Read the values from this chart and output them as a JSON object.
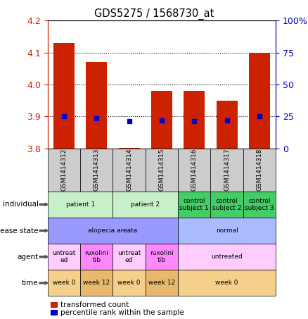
{
  "title": "GDS5275 / 1568730_at",
  "samples": [
    "GSM1414312",
    "GSM1414313",
    "GSM1414314",
    "GSM1414315",
    "GSM1414316",
    "GSM1414317",
    "GSM1414318"
  ],
  "red_values": [
    4.13,
    4.07,
    3.802,
    3.98,
    3.98,
    3.95,
    4.1
  ],
  "blue_values": [
    3.9,
    3.895,
    3.885,
    3.888,
    3.886,
    3.887,
    3.9
  ],
  "ylim": [
    3.8,
    4.2
  ],
  "yticks_left": [
    3.8,
    3.9,
    4.0,
    4.1,
    4.2
  ],
  "yticks_right": [
    0,
    25,
    50,
    75,
    100
  ],
  "bar_bottom": 3.8,
  "annotation_rows": [
    {
      "label": "individual",
      "cells": [
        {
          "text": "patient 1",
          "span": 2,
          "color": "#c8f0c8"
        },
        {
          "text": "patient 2",
          "span": 2,
          "color": "#c8f0c8"
        },
        {
          "text": "control\nsubject 1",
          "span": 1,
          "color": "#44cc66"
        },
        {
          "text": "control\nsubject 2",
          "span": 1,
          "color": "#44cc66"
        },
        {
          "text": "control\nsubject 3",
          "span": 1,
          "color": "#44cc66"
        }
      ]
    },
    {
      "label": "disease state",
      "cells": [
        {
          "text": "alopecia areata",
          "span": 4,
          "color": "#9999ff"
        },
        {
          "text": "normal",
          "span": 3,
          "color": "#aabbff"
        }
      ]
    },
    {
      "label": "agent",
      "cells": [
        {
          "text": "untreat\ned",
          "span": 1,
          "color": "#ffccff"
        },
        {
          "text": "ruxolini\ntib",
          "span": 1,
          "color": "#ff88ff"
        },
        {
          "text": "untreat\ned",
          "span": 1,
          "color": "#ffccff"
        },
        {
          "text": "ruxolini\ntib",
          "span": 1,
          "color": "#ff88ff"
        },
        {
          "text": "untreated",
          "span": 3,
          "color": "#ffccff"
        }
      ]
    },
    {
      "label": "time",
      "cells": [
        {
          "text": "week 0",
          "span": 1,
          "color": "#f5d08a"
        },
        {
          "text": "week 12",
          "span": 1,
          "color": "#e8b86d"
        },
        {
          "text": "week 0",
          "span": 1,
          "color": "#f5d08a"
        },
        {
          "text": "week 12",
          "span": 1,
          "color": "#e8b86d"
        },
        {
          "text": "week 0",
          "span": 3,
          "color": "#f5d08a"
        }
      ]
    }
  ],
  "legend_red": "transformed count",
  "legend_blue": "percentile rank within the sample",
  "bar_color": "#cc2200",
  "dot_color": "#0000cc",
  "tick_label_color_left": "#cc2200",
  "tick_label_color_right": "#0000cc",
  "sample_box_color": "#cccccc",
  "figsize": [
    4.38,
    4.53
  ],
  "dpi": 100
}
